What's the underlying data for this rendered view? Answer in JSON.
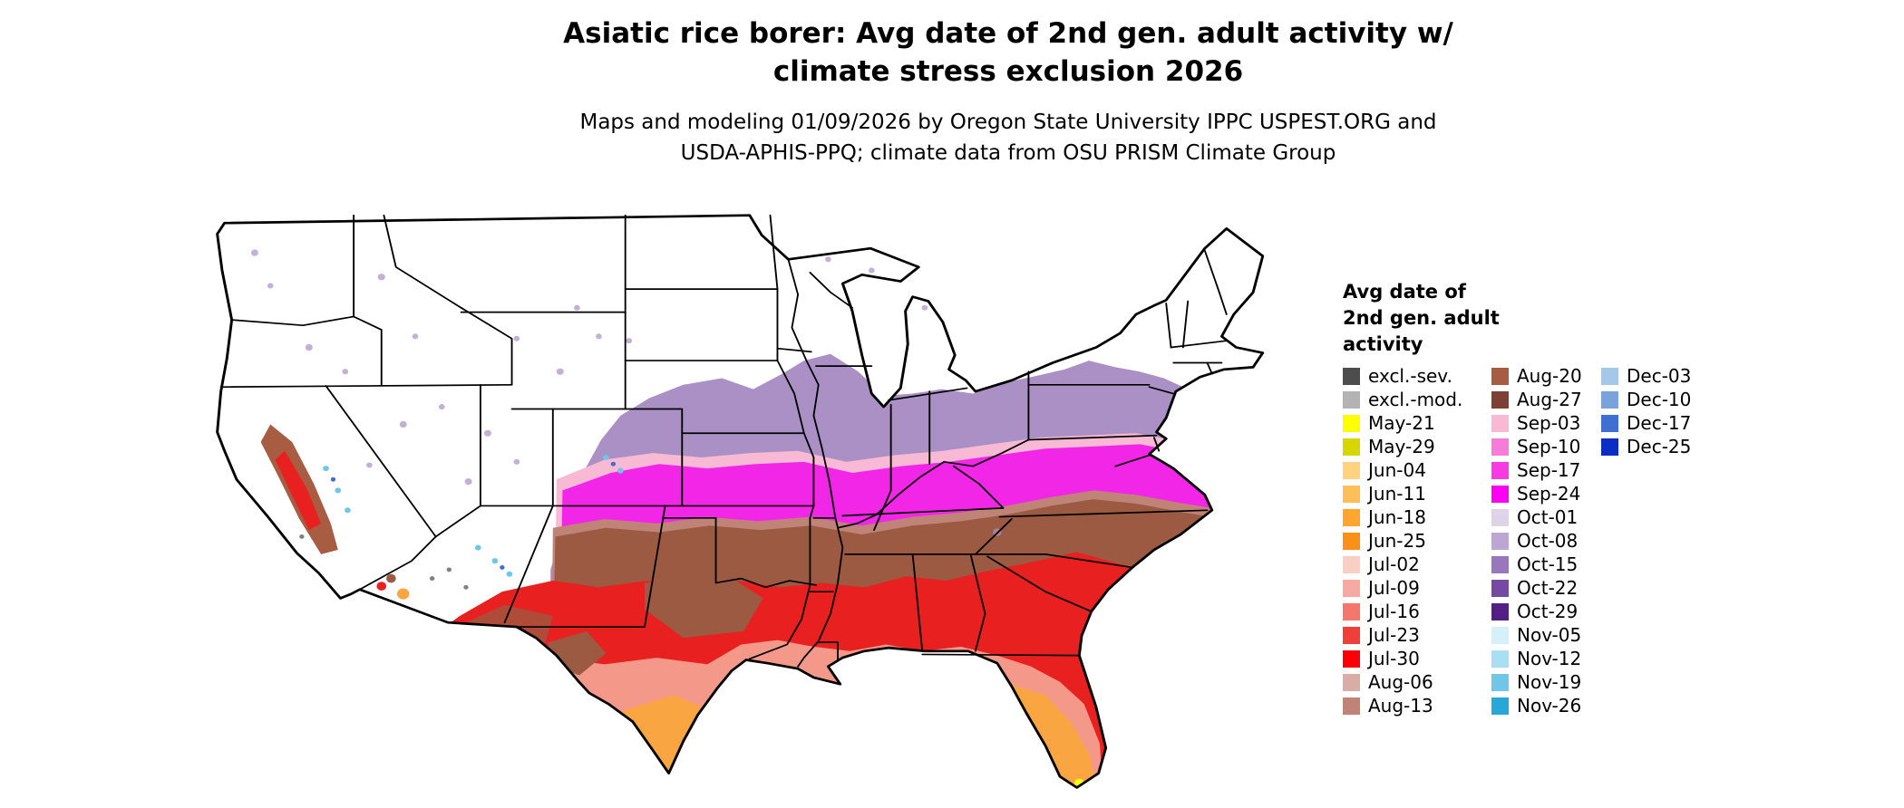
{
  "title": {
    "line1": "Asiatic rice borer: Avg date of 2nd gen. adult activity w/",
    "line2": "climate stress exclusion 2026"
  },
  "subtitle": {
    "line1": "Maps and modeling 01/09/2026 by Oregon State University IPPC USPEST.ORG and",
    "line2": "USDA-APHIS-PPQ; climate data from OSU PRISM Climate Group"
  },
  "map": {
    "region_label": "contiguous-united-states"
  },
  "legend": {
    "title_lines": [
      "Avg date of",
      "2nd gen. adult",
      "activity"
    ],
    "columns": [
      [
        {
          "label": "excl.-sev.",
          "color": "#4d4d4d"
        },
        {
          "label": "excl.-mod.",
          "color": "#b3b3b3"
        },
        {
          "label": "May-21",
          "color": "#ffff00"
        },
        {
          "label": "May-29",
          "color": "#d6d600"
        },
        {
          "label": "Jun-04",
          "color": "#ffd37f"
        },
        {
          "label": "Jun-11",
          "color": "#ffbf57"
        },
        {
          "label": "Jun-18",
          "color": "#ffa62e"
        },
        {
          "label": "Jun-25",
          "color": "#fb9016"
        },
        {
          "label": "Jul-02",
          "color": "#f9cfc4"
        },
        {
          "label": "Jul-09",
          "color": "#f7a8a0"
        },
        {
          "label": "Jul-16",
          "color": "#f4766d"
        },
        {
          "label": "Jul-23",
          "color": "#ef3f38"
        },
        {
          "label": "Jul-30",
          "color": "#fb0007"
        },
        {
          "label": "Aug-06",
          "color": "#d9aca6"
        },
        {
          "label": "Aug-13",
          "color": "#c08378"
        }
      ],
      [
        {
          "label": "Aug-20",
          "color": "#a85c41"
        },
        {
          "label": "Aug-27",
          "color": "#7e4034"
        },
        {
          "label": "Sep-03",
          "color": "#f7b9d4"
        },
        {
          "label": "Sep-10",
          "color": "#f77bd8"
        },
        {
          "label": "Sep-17",
          "color": "#f73ae2"
        },
        {
          "label": "Sep-24",
          "color": "#fb00f3"
        },
        {
          "label": "Oct-01",
          "color": "#ded3e8"
        },
        {
          "label": "Oct-08",
          "color": "#bda6d4"
        },
        {
          "label": "Oct-15",
          "color": "#9a77bd"
        },
        {
          "label": "Oct-22",
          "color": "#7649a3"
        },
        {
          "label": "Oct-29",
          "color": "#531f86"
        },
        {
          "label": "Nov-05",
          "color": "#d4f0fa"
        },
        {
          "label": "Nov-12",
          "color": "#a8dff2"
        },
        {
          "label": "Nov-19",
          "color": "#6ec6e8"
        },
        {
          "label": "Nov-26",
          "color": "#28a8d8"
        }
      ],
      [
        {
          "label": "Dec-03",
          "color": "#a6c8e8"
        },
        {
          "label": "Dec-10",
          "color": "#7aa3dc"
        },
        {
          "label": "Dec-17",
          "color": "#3f6fd0"
        },
        {
          "label": "Dec-25",
          "color": "#0a2ec4"
        }
      ]
    ]
  }
}
